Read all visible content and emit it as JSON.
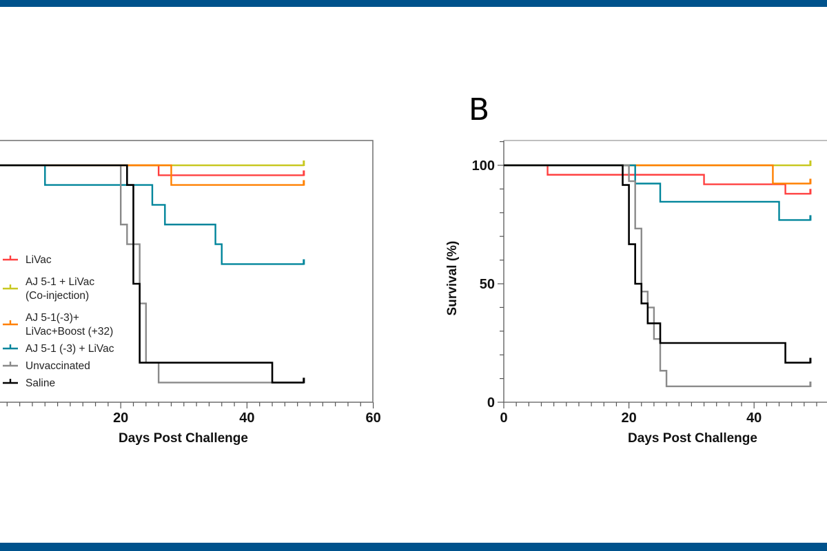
{
  "colors": {
    "banner": "#00528c"
  },
  "chart_data": [
    {
      "type": "line",
      "style": "kaplan-meier step",
      "panel_label": "",
      "xlabel": "Days Post Challenge",
      "ylabel": "",
      "xlim": [
        0,
        60
      ],
      "ylim": [
        0,
        110
      ],
      "x_ticks": [
        "20",
        "40",
        "60"
      ],
      "y_ticks": [],
      "legend": "left-center",
      "series": [
        {
          "name": "LiVac",
          "color": "#ff4040",
          "steps": [
            [
              0,
              100
            ],
            [
              26,
              95.8
            ]
          ],
          "censor_day": 49
        },
        {
          "name": "AJ 5-1 + LiVac (Co-injection)",
          "legend_lines": [
            "AJ 5-1 + LiVac",
            "(Co-injection)"
          ],
          "color": "#c8c820",
          "steps": [
            [
              0,
              100
            ]
          ],
          "censor_day": 49
        },
        {
          "name": "AJ 5-1(-3)+ LiVac+Boost (+32)",
          "legend_lines": [
            "AJ 5-1(-3)+",
            "LiVac+Boost (+32)"
          ],
          "color": "#ff8000",
          "steps": [
            [
              0,
              100
            ],
            [
              28,
              91.7
            ]
          ],
          "censor_day": 49
        },
        {
          "name": "AJ 5-1 (-3) + LiVac",
          "color": "#00859b",
          "steps": [
            [
              0,
              100
            ],
            [
              8,
              91.7
            ],
            [
              25,
              83.3
            ],
            [
              27,
              75
            ],
            [
              35,
              66.7
            ],
            [
              36,
              58.3
            ]
          ],
          "censor_day": 49
        },
        {
          "name": "Unvaccinated",
          "color": "#8a8a8a",
          "steps": [
            [
              0,
              100
            ],
            [
              20,
              75
            ],
            [
              21,
              66.7
            ],
            [
              23,
              41.7
            ],
            [
              24,
              16.7
            ],
            [
              26,
              8.3
            ]
          ],
          "censor_day": 49
        },
        {
          "name": "Saline",
          "color": "#000000",
          "steps": [
            [
              0,
              100
            ],
            [
              21,
              91.7
            ],
            [
              22,
              50
            ],
            [
              23,
              16.7
            ],
            [
              44,
              8.3
            ]
          ],
          "censor_day": 49
        }
      ]
    },
    {
      "type": "line",
      "style": "kaplan-meier step",
      "panel_label": "B",
      "xlabel": "Days Post Challenge",
      "ylabel": "Survival (%)",
      "xlim": [
        0,
        60
      ],
      "ylim": [
        0,
        110
      ],
      "x_ticks": [
        "0",
        "20",
        "40"
      ],
      "y_ticks": [
        "0",
        "50",
        "100"
      ],
      "legend": "none",
      "series": [
        {
          "color": "#ff4040",
          "steps": [
            [
              0,
              100
            ],
            [
              7,
              96
            ],
            [
              32,
              92
            ],
            [
              45,
              88
            ]
          ],
          "censor_day": 49
        },
        {
          "color": "#c8c820",
          "steps": [
            [
              0,
              100
            ]
          ],
          "censor_day": 49
        },
        {
          "color": "#ff8000",
          "steps": [
            [
              0,
              100
            ],
            [
              43,
              92.3
            ]
          ],
          "censor_day": 49
        },
        {
          "color": "#00859b",
          "steps": [
            [
              0,
              100
            ],
            [
              21,
              92.3
            ],
            [
              25,
              84.6
            ],
            [
              44,
              76.9
            ]
          ],
          "censor_day": 49
        },
        {
          "color": "#8a8a8a",
          "steps": [
            [
              0,
              100
            ],
            [
              20,
              93.3
            ],
            [
              21,
              73.3
            ],
            [
              22,
              46.7
            ],
            [
              23,
              40
            ],
            [
              24,
              26.7
            ],
            [
              25,
              13.3
            ],
            [
              26,
              6.7
            ]
          ],
          "censor_day": 49
        },
        {
          "color": "#000000",
          "steps": [
            [
              0,
              100
            ],
            [
              19,
              91.7
            ],
            [
              20,
              66.7
            ],
            [
              21,
              50
            ],
            [
              22,
              41.7
            ],
            [
              23,
              33.3
            ],
            [
              25,
              25
            ],
            [
              45,
              16.7
            ]
          ],
          "censor_day": 49
        }
      ]
    }
  ]
}
